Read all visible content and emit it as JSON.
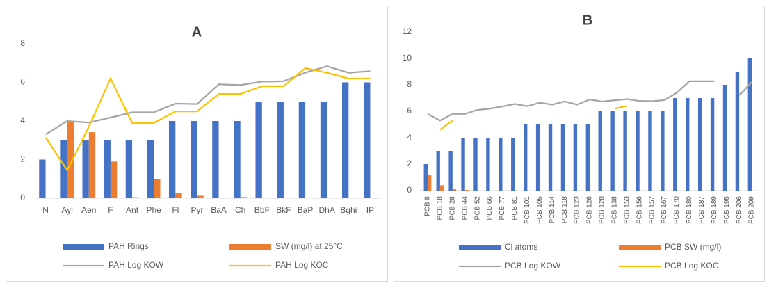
{
  "chart_data": [
    {
      "type": "bar",
      "title": "A",
      "categories": [
        "N",
        "Ayl",
        "Aen",
        "F",
        "Ant",
        "Phe",
        "Fl",
        "Pyr",
        "BaA",
        "Ch",
        "BbF",
        "BkF",
        "BaP",
        "DhA",
        "Bghi",
        "IP"
      ],
      "ylim": [
        0,
        8
      ],
      "yticks": [
        0,
        2,
        4,
        6,
        8
      ],
      "grid": false,
      "series": [
        {
          "name": "PAH Rings",
          "type": "bar",
          "color": "#4472c4",
          "values": [
            2,
            3,
            3,
            3,
            3,
            3,
            4,
            4,
            4,
            4,
            5,
            5,
            5,
            5,
            6,
            6
          ]
        },
        {
          "name": "SW (mg/l) at 25°C",
          "type": "bar",
          "color": "#ed7d31",
          "values": [
            null,
            3.93,
            3.42,
            1.9,
            0.05,
            1.0,
            0.26,
            0.13,
            0.01,
            0.06,
            0.01,
            0.01,
            0.01,
            0.01,
            0.01,
            0.01
          ]
        },
        {
          "name": "PAH Log KOW",
          "type": "line",
          "color": "#a5a5a5",
          "values": [
            3.3,
            4.0,
            3.92,
            4.18,
            4.45,
            4.45,
            4.9,
            4.88,
            5.9,
            5.86,
            6.04,
            6.06,
            6.5,
            6.84,
            6.5,
            6.58
          ]
        },
        {
          "name": "PAH Log KOC",
          "type": "line",
          "color": "#ffc000",
          "values": [
            3.15,
            1.45,
            3.7,
            6.2,
            3.9,
            3.9,
            4.5,
            4.5,
            5.4,
            5.4,
            5.8,
            5.8,
            6.74,
            6.5,
            6.2,
            6.2
          ]
        }
      ]
    },
    {
      "type": "bar",
      "title": "B",
      "categories": [
        "PCB 8",
        "PCB 18",
        "PCB 28",
        "PCB 44",
        "PCB 52",
        "PCB 66",
        "PCB 77",
        "PCB 81",
        "PCB 101",
        "PCB 105",
        "PCB 114",
        "PCB 118",
        "PCB 123",
        "PCB 126",
        "PCB 128",
        "PCB 138",
        "PCB 153",
        "PCB 156",
        "PCB 157",
        "PCB 167",
        "PCB 170",
        "PCB 180",
        "PCB 187",
        "PCB 189",
        "PCB 195",
        "PCB 206",
        "PCB 209"
      ],
      "ylim": [
        0,
        12
      ],
      "yticks": [
        0,
        2,
        4,
        6,
        8,
        10,
        12
      ],
      "grid": false,
      "series": [
        {
          "name": "Cl atoms",
          "type": "bar",
          "color": "#4472c4",
          "values": [
            2,
            3,
            3,
            4,
            4,
            4,
            4,
            4,
            5,
            5,
            5,
            5,
            5,
            5,
            6,
            6,
            6,
            6,
            6,
            6,
            7,
            7,
            7,
            7,
            8,
            9,
            10
          ]
        },
        {
          "name": "PCB SW (mg/l)",
          "type": "bar",
          "color": "#ed7d31",
          "values": [
            1.2,
            0.4,
            0.1,
            0.05,
            null,
            null,
            null,
            null,
            null,
            null,
            null,
            null,
            null,
            null,
            null,
            null,
            null,
            null,
            null,
            null,
            null,
            null,
            null,
            null,
            null,
            null,
            null
          ]
        },
        {
          "name": "PCB Log KOW",
          "type": "line",
          "color": "#a5a5a5",
          "values": [
            5.8,
            5.3,
            5.8,
            5.8,
            6.1,
            6.2,
            6.36,
            6.55,
            6.38,
            6.65,
            6.5,
            6.74,
            6.5,
            6.89,
            6.74,
            6.83,
            6.92,
            6.78,
            6.76,
            6.85,
            7.4,
            8.27,
            8.27,
            8.27,
            null,
            7.2,
            8.2
          ]
        },
        {
          "name": "PCB Log KOC",
          "type": "line",
          "color": "#ffc000",
          "values": [
            null,
            4.6,
            5.3,
            null,
            null,
            null,
            null,
            null,
            null,
            null,
            null,
            null,
            null,
            null,
            null,
            6.2,
            6.4,
            null,
            null,
            null,
            null,
            null,
            null,
            null,
            null,
            null,
            null
          ]
        }
      ]
    }
  ]
}
